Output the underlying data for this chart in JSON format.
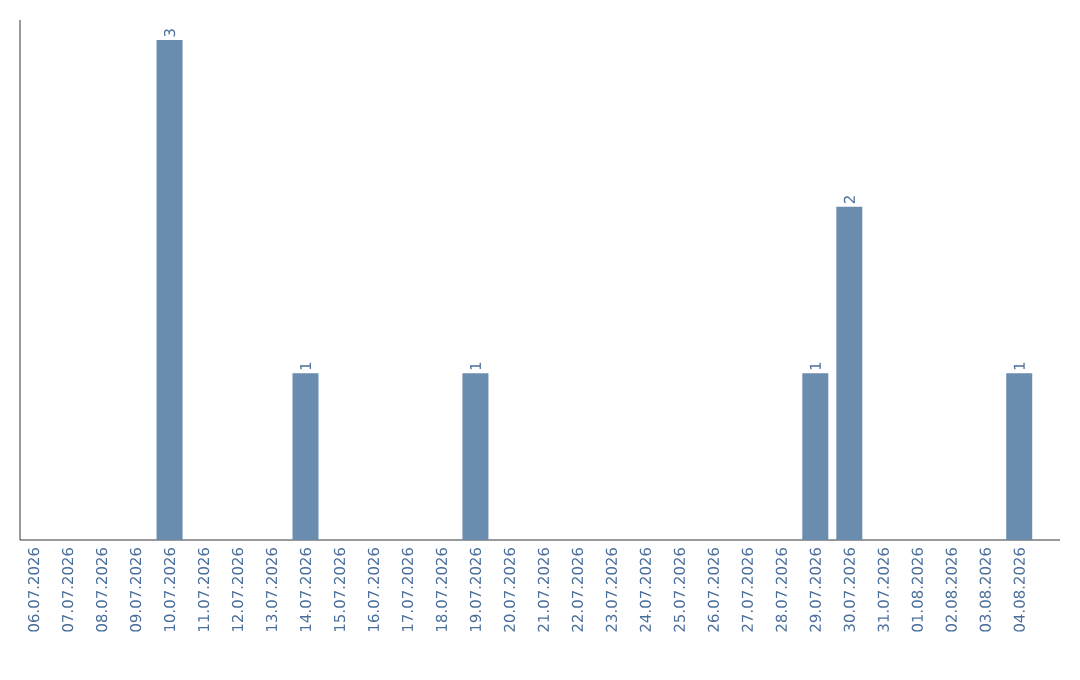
{
  "chart_data": {
    "type": "bar",
    "categories": [
      "06.07.2026",
      "07.07.2026",
      "08.07.2026",
      "09.07.2026",
      "10.07.2026",
      "11.07.2026",
      "12.07.2026",
      "13.07.2026",
      "14.07.2026",
      "15.07.2026",
      "16.07.2026",
      "17.07.2026",
      "18.07.2026",
      "19.07.2026",
      "20.07.2026",
      "21.07.2026",
      "22.07.2026",
      "23.07.2026",
      "24.07.2026",
      "25.07.2026",
      "26.07.2026",
      "27.07.2026",
      "28.07.2026",
      "29.07.2026",
      "30.07.2026",
      "31.07.2026",
      "01.08.2026",
      "02.08.2026",
      "03.08.2026",
      "04.08.2026"
    ],
    "values": [
      0,
      0,
      0,
      0,
      3,
      0,
      0,
      0,
      1,
      0,
      0,
      0,
      0,
      1,
      0,
      0,
      0,
      0,
      0,
      0,
      0,
      0,
      0,
      1,
      2,
      0,
      0,
      0,
      0,
      1
    ],
    "value_labels": [
      null,
      null,
      null,
      null,
      "3",
      null,
      null,
      null,
      "1",
      null,
      null,
      null,
      null,
      "1",
      null,
      null,
      null,
      null,
      null,
      null,
      null,
      null,
      null,
      "1",
      "2",
      null,
      null,
      null,
      null,
      "1"
    ],
    "color": "#6a8caf",
    "tick_labels": "x",
    "grid": false
  }
}
